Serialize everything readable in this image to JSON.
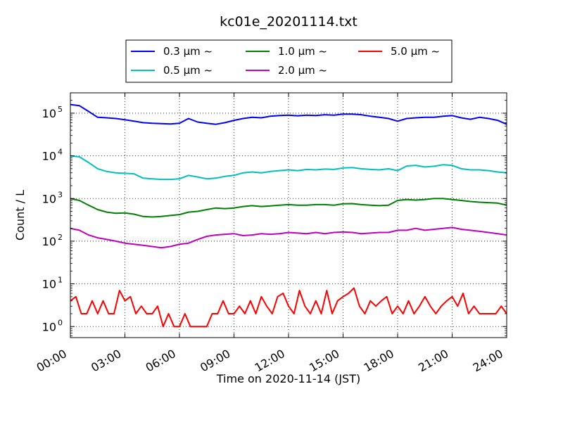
{
  "chart_data": {
    "type": "line",
    "title": "kc01e_20201114.txt",
    "xlabel": "Time on 2020-11-14 (JST)",
    "ylabel": "Count / L",
    "yscale": "log",
    "xlim": [
      0,
      24
    ],
    "ylim": [
      0.55,
      300000
    ],
    "grid": true,
    "legend_position": "top-center",
    "x_ticks": [
      {
        "value": 0,
        "label": "00:00"
      },
      {
        "value": 3,
        "label": "03:00"
      },
      {
        "value": 6,
        "label": "06:00"
      },
      {
        "value": 9,
        "label": "09:00"
      },
      {
        "value": 12,
        "label": "12:00"
      },
      {
        "value": 15,
        "label": "15:00"
      },
      {
        "value": 18,
        "label": "18:00"
      },
      {
        "value": 21,
        "label": "21:00"
      },
      {
        "value": 24,
        "label": "24:00"
      }
    ],
    "y_ticks": [
      {
        "value": 1,
        "base": "10",
        "exp": "0"
      },
      {
        "value": 10,
        "base": "10",
        "exp": "1"
      },
      {
        "value": 100,
        "base": "10",
        "exp": "2"
      },
      {
        "value": 1000,
        "base": "10",
        "exp": "3"
      },
      {
        "value": 10000,
        "base": "10",
        "exp": "4"
      },
      {
        "value": 100000,
        "base": "10",
        "exp": "5"
      }
    ],
    "series": [
      {
        "name": "0.3 μm  ~",
        "color": "#0000ff",
        "x": [
          0,
          0.5,
          1,
          1.5,
          2,
          2.5,
          3,
          3.5,
          4,
          4.5,
          5,
          5.5,
          6,
          6.5,
          7,
          7.5,
          8,
          8.5,
          9,
          9.5,
          10,
          10.5,
          11,
          11.5,
          12,
          12.5,
          13,
          13.5,
          14,
          14.5,
          15,
          15.5,
          16,
          16.5,
          17,
          17.5,
          18,
          18.5,
          19,
          19.5,
          20,
          20.5,
          21,
          21.5,
          22,
          22.5,
          23,
          23.5,
          24
        ],
        "values": [
          160000,
          150000,
          110000,
          80000,
          78000,
          75000,
          70000,
          65000,
          60000,
          58000,
          57000,
          56000,
          58000,
          75000,
          62000,
          58000,
          55000,
          60000,
          68000,
          75000,
          80000,
          78000,
          85000,
          88000,
          90000,
          87000,
          90000,
          88000,
          92000,
          90000,
          95000,
          95000,
          92000,
          85000,
          80000,
          75000,
          65000,
          75000,
          78000,
          80000,
          80000,
          85000,
          88000,
          78000,
          72000,
          80000,
          75000,
          68000,
          55000
        ]
      },
      {
        "name": "0.5 μm  ~",
        "color": "#00bfbf",
        "x": [
          0,
          0.5,
          1,
          1.5,
          2,
          2.5,
          3,
          3.5,
          4,
          4.5,
          5,
          5.5,
          6,
          6.5,
          7,
          7.5,
          8,
          8.5,
          9,
          9.5,
          10,
          10.5,
          11,
          11.5,
          12,
          12.5,
          13,
          13.5,
          14,
          14.5,
          15,
          15.5,
          16,
          16.5,
          17,
          17.5,
          18,
          18.5,
          19,
          19.5,
          20,
          20.5,
          21,
          21.5,
          22,
          22.5,
          23,
          23.5,
          24
        ],
        "values": [
          10000,
          9500,
          7000,
          5000,
          4300,
          4000,
          3900,
          3800,
          3000,
          2900,
          2800,
          2800,
          2900,
          3500,
          3200,
          2900,
          3000,
          3300,
          3500,
          4000,
          4200,
          4000,
          4300,
          4500,
          4700,
          4500,
          4800,
          4700,
          4900,
          4800,
          5200,
          5300,
          5000,
          4800,
          4700,
          5000,
          4500,
          5800,
          6000,
          5500,
          5700,
          6200,
          6000,
          5000,
          4700,
          4700,
          4500,
          4200,
          4000
        ]
      },
      {
        "name": "1.0 μm  ~",
        "color": "#008000",
        "x": [
          0,
          0.5,
          1,
          1.5,
          2,
          2.5,
          3,
          3.5,
          4,
          4.5,
          5,
          5.5,
          6,
          6.5,
          7,
          7.5,
          8,
          8.5,
          9,
          9.5,
          10,
          10.5,
          11,
          11.5,
          12,
          12.5,
          13,
          13.5,
          14,
          14.5,
          15,
          15.5,
          16,
          16.5,
          17,
          17.5,
          18,
          18.5,
          19,
          19.5,
          20,
          20.5,
          21,
          21.5,
          22,
          22.5,
          23,
          23.5,
          24
        ],
        "values": [
          1000,
          900,
          700,
          550,
          480,
          450,
          460,
          430,
          380,
          370,
          380,
          400,
          420,
          480,
          500,
          550,
          600,
          580,
          600,
          650,
          680,
          650,
          670,
          700,
          720,
          700,
          700,
          720,
          720,
          700,
          750,
          760,
          720,
          700,
          680,
          700,
          900,
          950,
          920,
          950,
          1000,
          1000,
          950,
          900,
          850,
          820,
          800,
          780,
          700
        ]
      },
      {
        "name": "2.0 μm  ~",
        "color": "#bf00bf",
        "x": [
          0,
          0.5,
          1,
          1.5,
          2,
          2.5,
          3,
          3.5,
          4,
          4.5,
          5,
          5.5,
          6,
          6.5,
          7,
          7.5,
          8,
          8.5,
          9,
          9.5,
          10,
          10.5,
          11,
          11.5,
          12,
          12.5,
          13,
          13.5,
          14,
          14.5,
          15,
          15.5,
          16,
          16.5,
          17,
          17.5,
          18,
          18.5,
          19,
          19.5,
          20,
          20.5,
          21,
          21.5,
          22,
          22.5,
          23,
          23.5,
          24
        ],
        "values": [
          200,
          180,
          140,
          120,
          110,
          100,
          90,
          85,
          80,
          75,
          70,
          75,
          85,
          90,
          110,
          130,
          140,
          145,
          150,
          135,
          140,
          150,
          145,
          150,
          160,
          155,
          150,
          160,
          150,
          160,
          165,
          160,
          150,
          155,
          160,
          160,
          180,
          180,
          200,
          180,
          190,
          200,
          210,
          190,
          180,
          170,
          160,
          150,
          140
        ]
      },
      {
        "name": "5.0 μm  ~",
        "color": "#ff0000",
        "x": [
          0,
          0.3,
          0.6,
          0.9,
          1.2,
          1.5,
          1.8,
          2.1,
          2.4,
          2.7,
          3.0,
          3.3,
          3.6,
          3.9,
          4.2,
          4.5,
          4.8,
          5.1,
          5.4,
          5.7,
          6.0,
          6.3,
          6.6,
          6.9,
          7.2,
          7.5,
          7.8,
          8.1,
          8.4,
          8.7,
          9.0,
          9.3,
          9.6,
          9.9,
          10.2,
          10.5,
          10.8,
          11.1,
          11.4,
          11.7,
          12.0,
          12.3,
          12.6,
          12.9,
          13.2,
          13.5,
          13.8,
          14.1,
          14.4,
          14.7,
          15.0,
          15.3,
          15.6,
          15.9,
          16.2,
          16.5,
          16.8,
          17.1,
          17.4,
          17.7,
          18.0,
          18.3,
          18.6,
          18.9,
          19.2,
          19.5,
          19.8,
          20.1,
          20.4,
          20.7,
          21.0,
          21.3,
          21.6,
          21.9,
          22.2,
          22.5,
          22.8,
          23.1,
          23.4,
          23.7,
          24.0
        ],
        "values": [
          4,
          5,
          2,
          2,
          4,
          2,
          4,
          2,
          2,
          7,
          4,
          5,
          2,
          3,
          2,
          2,
          3,
          1,
          2,
          1,
          1,
          2,
          1,
          1,
          1,
          1,
          2,
          2,
          4,
          2,
          2,
          3,
          2,
          4,
          2,
          5,
          3,
          2,
          5,
          6,
          3,
          2,
          7,
          3,
          2,
          4,
          2,
          7,
          2,
          4,
          5,
          6,
          8,
          3,
          2,
          4,
          3,
          4,
          5,
          2,
          3,
          2,
          4,
          2,
          3,
          5,
          3,
          2,
          3,
          4,
          5,
          3,
          6,
          2,
          3,
          2,
          2,
          2,
          2,
          3,
          2
        ]
      }
    ]
  }
}
